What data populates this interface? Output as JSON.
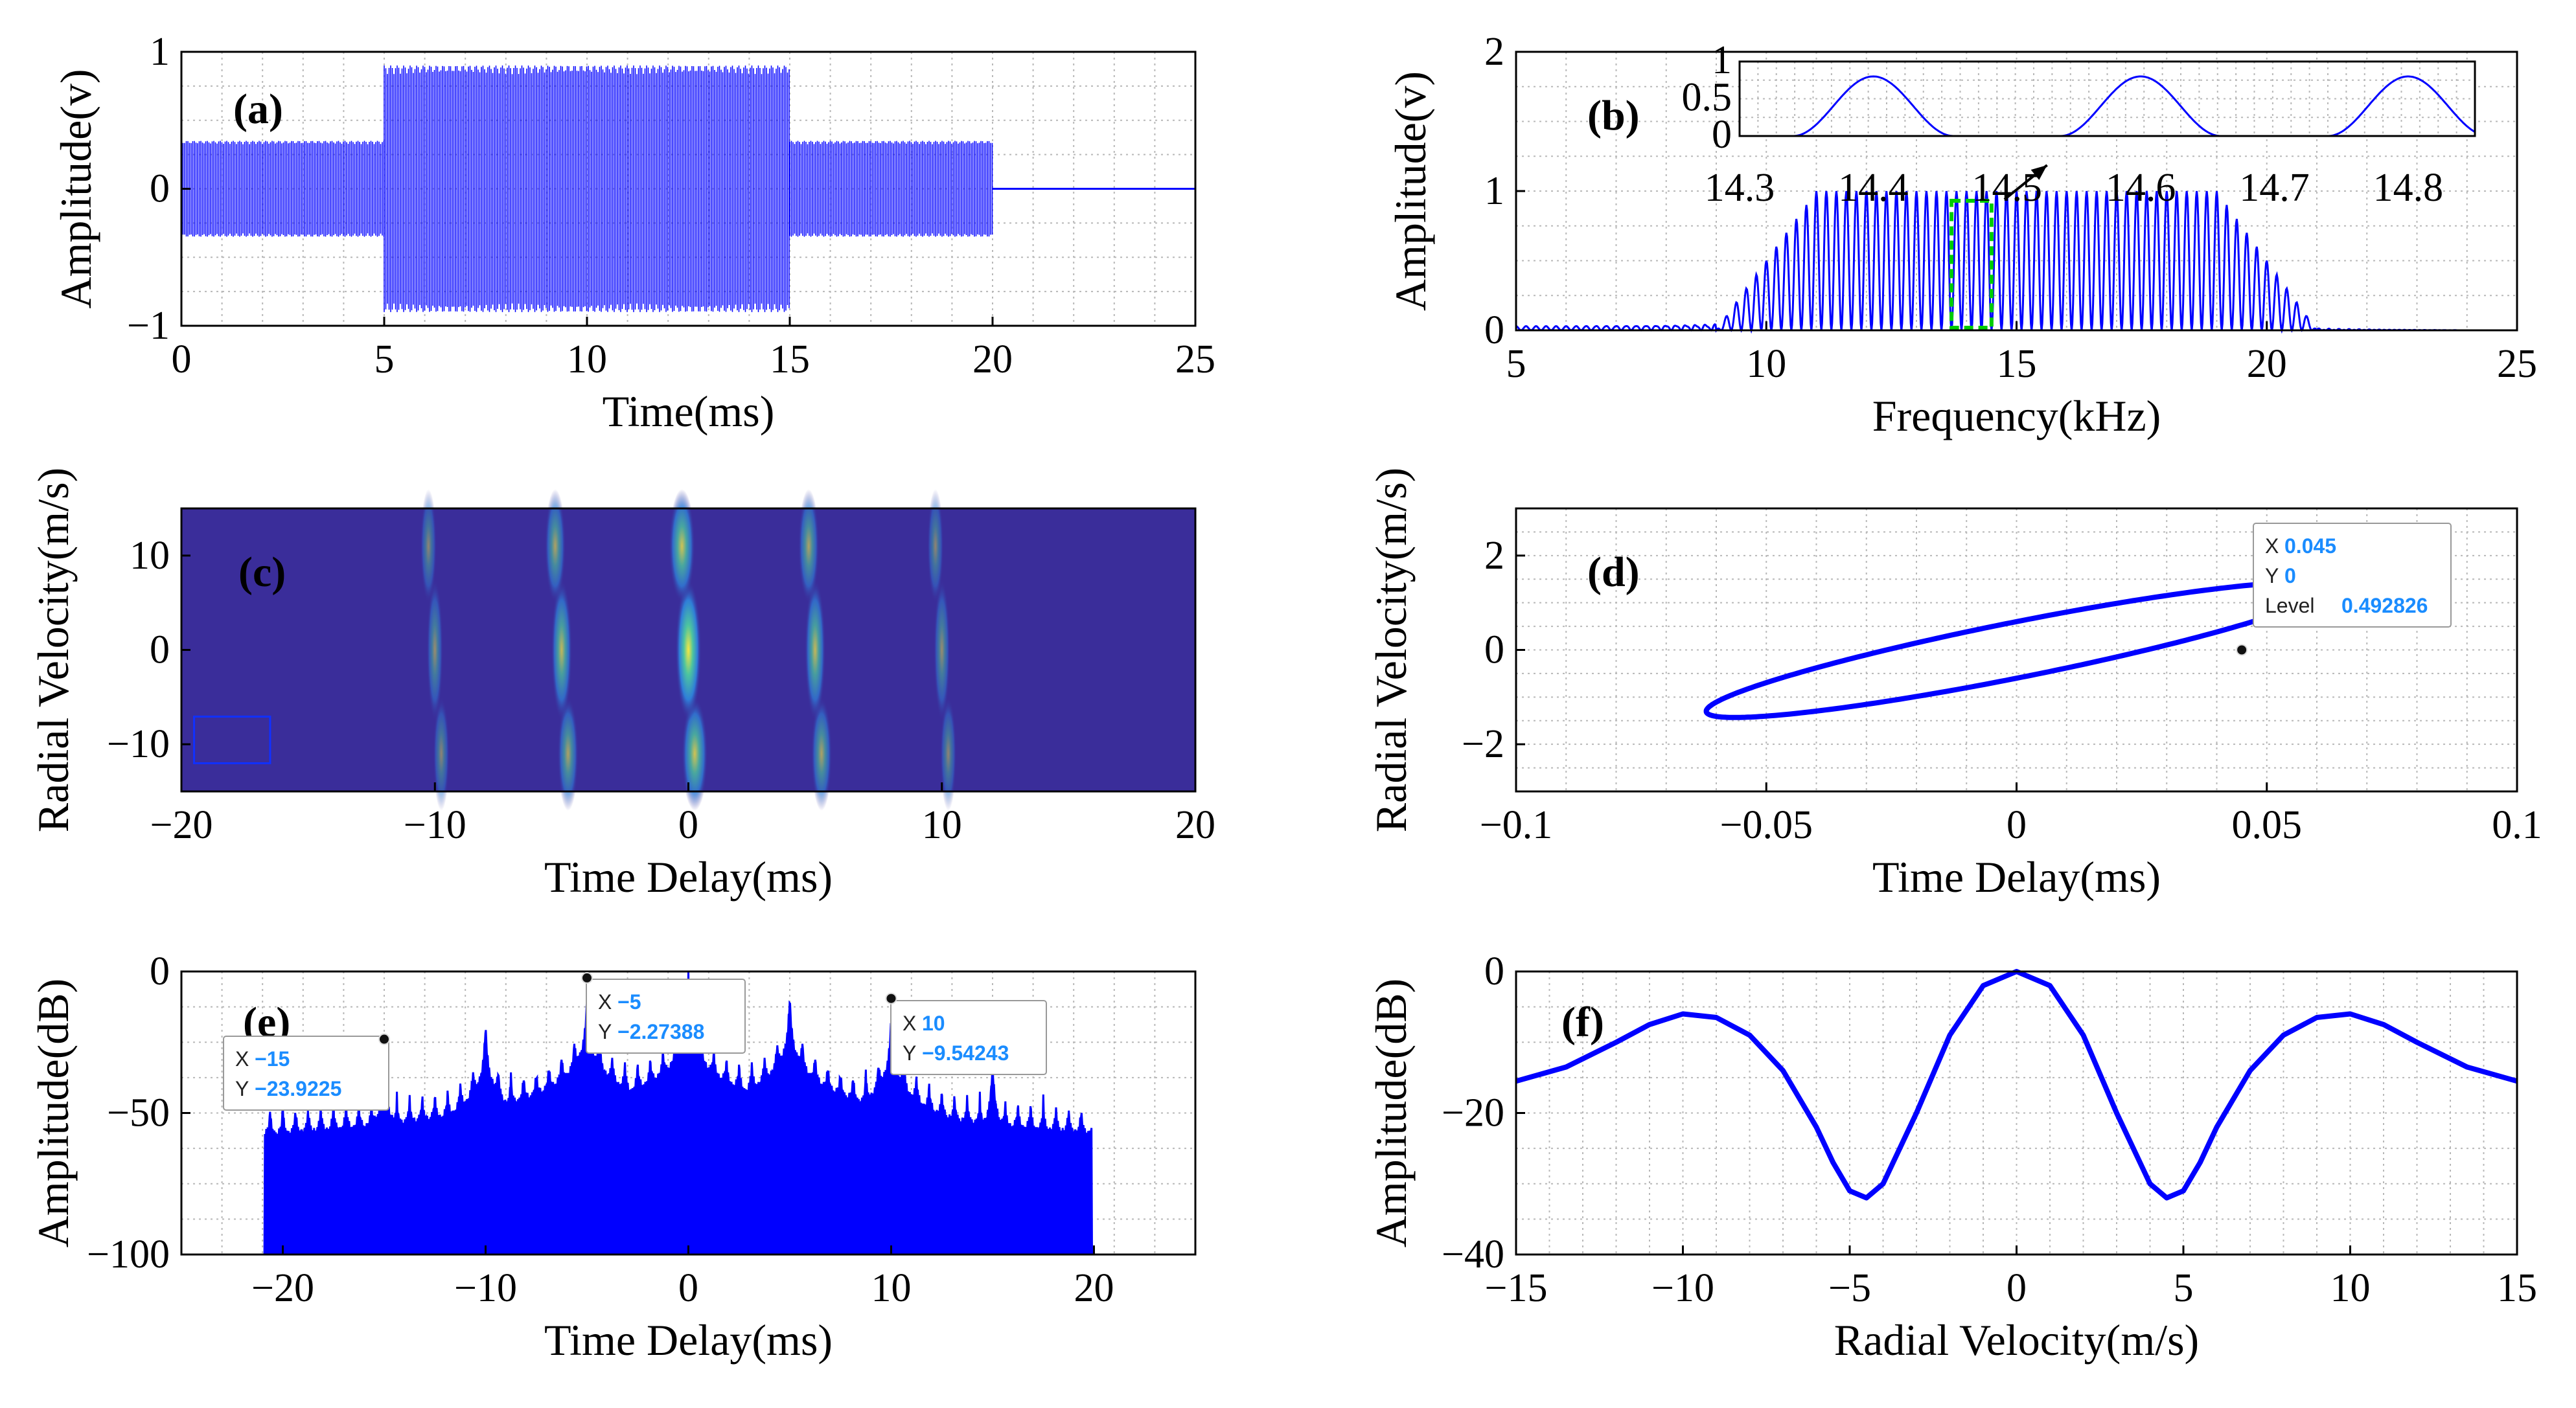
{
  "colors": {
    "signal": "#0000ff",
    "highlight": "#00cc00",
    "heat_bg": "#3a2d9a",
    "datatip_value": "#1a8cff"
  },
  "chart_data": [
    {
      "id": "a",
      "panel_label": "(a)",
      "type": "line",
      "xlabel": "Time(ms)",
      "ylabel": "Amplitude(v)",
      "xlim": [
        0,
        25
      ],
      "ylim": [
        -1,
        1
      ],
      "xticks": [
        "0",
        "5",
        "10",
        "15",
        "20",
        "25"
      ],
      "yticks": [
        "1",
        "0",
        "−1"
      ],
      "grid": true,
      "segments": [
        {
          "x": [
            0,
            5
          ],
          "envelope": 0.35
        },
        {
          "x": [
            5,
            15
          ],
          "envelope": 0.9
        },
        {
          "x": [
            15,
            20
          ],
          "envelope": 0.35
        },
        {
          "x": [
            20,
            25
          ],
          "envelope": 0
        }
      ]
    },
    {
      "id": "b",
      "panel_label": "(b)",
      "type": "line",
      "xlabel": "Frequency(kHz)",
      "ylabel": "Amplitude(v)",
      "xlim": [
        5,
        25
      ],
      "ylim": [
        0,
        2
      ],
      "xticks": [
        "5",
        "10",
        "15",
        "20",
        "25"
      ],
      "yticks": [
        "2",
        "1",
        "0"
      ],
      "grid": true,
      "band": [
        10,
        20
      ],
      "peak_spacing_khz": 0.2,
      "peak_level": 1.0,
      "highlight_x": [
        13.7,
        14.5
      ],
      "inset": {
        "xlim": [
          14.3,
          14.85
        ],
        "ylim": [
          0,
          1
        ],
        "xticks": [
          "14.3",
          "14.4",
          "14.5",
          "14.6",
          "14.7",
          "14.8"
        ],
        "yticks": [
          "1",
          "0.5",
          "0"
        ],
        "peaks_x": [
          14.4,
          14.6,
          14.8
        ],
        "peak_level": 0.8
      }
    },
    {
      "id": "c",
      "panel_label": "(c)",
      "type": "heatmap",
      "xlabel": "Time Delay(ms)",
      "ylabel": "Radial Velocity(m/s)",
      "xlim": [
        -20,
        20
      ],
      "ylim": [
        -15,
        15
      ],
      "xticks": [
        "−20",
        "−10",
        "0",
        "10",
        "20"
      ],
      "yticks": [
        "−10",
        "0",
        "10"
      ],
      "ridges_x": [
        -10,
        -5,
        0,
        5,
        10
      ],
      "ridge_strength": [
        0.25,
        0.6,
        1.0,
        0.6,
        0.25
      ]
    },
    {
      "id": "d",
      "panel_label": "(d)",
      "type": "line",
      "xlabel": "Time Delay(ms)",
      "ylabel": "Radial Velocity(m/s)",
      "xlim": [
        -0.1,
        0.1
      ],
      "ylim": [
        -3,
        3
      ],
      "xticks": [
        "−0.1",
        "−0.05",
        "0",
        "0.05",
        "0.1"
      ],
      "yticks": [
        "2",
        "0",
        "−2"
      ],
      "grid": true,
      "ellipse": {
        "center": [
          0,
          0
        ],
        "x_extent": 0.062,
        "y_at_xmax": -1.3,
        "y_at_xmin": 1.3,
        "half_width_y": 0.6
      },
      "datatip": {
        "x_label": "X",
        "x": "0.045",
        "y_label": "Y",
        "y": "0",
        "level_label": "Level",
        "level": "0.492826",
        "point": [
          0.045,
          0
        ]
      }
    },
    {
      "id": "e",
      "panel_label": "(e)",
      "type": "line",
      "xlabel": "Time Delay(ms)",
      "ylabel": "Amplitude(dB)",
      "xlim": [
        -25,
        25
      ],
      "ylim": [
        -100,
        0
      ],
      "xticks": [
        "−20",
        "−10",
        "0",
        "10",
        "20"
      ],
      "yticks": [
        "0",
        "−50",
        "−100"
      ],
      "grid": true,
      "peaks": [
        {
          "x": -20,
          "y": -40
        },
        {
          "x": -15,
          "y": -23.9225
        },
        {
          "x": -10,
          "y": -12
        },
        {
          "x": -5,
          "y": -2.27388
        },
        {
          "x": 0,
          "y": 0
        },
        {
          "x": 5,
          "y": -2.27388
        },
        {
          "x": 10,
          "y": -9.54243
        },
        {
          "x": 15,
          "y": -25
        },
        {
          "x": 20,
          "y": -40
        }
      ],
      "datatips": [
        {
          "x_label": "X",
          "x": "−15",
          "y_label": "Y",
          "y": "−23.9225",
          "point": [
            -15,
            -23.9225
          ]
        },
        {
          "x_label": "X",
          "x": "−5",
          "y_label": "Y",
          "y": "−2.27388",
          "point": [
            -5,
            -2.27388
          ]
        },
        {
          "x_label": "X",
          "x": "10",
          "y_label": "Y",
          "y": "−9.54243",
          "point": [
            10,
            -9.54243
          ]
        }
      ]
    },
    {
      "id": "f",
      "panel_label": "(f)",
      "type": "line",
      "xlabel": "Radial Velocity(m/s)",
      "ylabel": "Amplitude(dB)",
      "xlim": [
        -15,
        15
      ],
      "ylim": [
        -40,
        0
      ],
      "xticks": [
        "−15",
        "−10",
        "−5",
        "0",
        "5",
        "10",
        "15"
      ],
      "yticks": [
        "0",
        "−20",
        "−40"
      ],
      "grid": true,
      "x": [
        -15,
        -13.5,
        -12,
        -11,
        -10,
        -9,
        -8,
        -7,
        -6,
        -5.5,
        -5,
        -4.5,
        -4,
        -3,
        -2,
        -1,
        0,
        1,
        2,
        3,
        4,
        4.5,
        5,
        5.5,
        6,
        7,
        8,
        9,
        10,
        11,
        12,
        13.5,
        15
      ],
      "y": [
        -15.5,
        -13.5,
        -10,
        -7.5,
        -6,
        -6.5,
        -9,
        -14,
        -22,
        -27,
        -31,
        -32,
        -30,
        -20,
        -9,
        -2,
        0,
        -2,
        -9,
        -20,
        -30,
        -32,
        -31,
        -27,
        -22,
        -14,
        -9,
        -6.5,
        -6,
        -7.5,
        -10,
        -13.5,
        -15.5
      ]
    }
  ]
}
